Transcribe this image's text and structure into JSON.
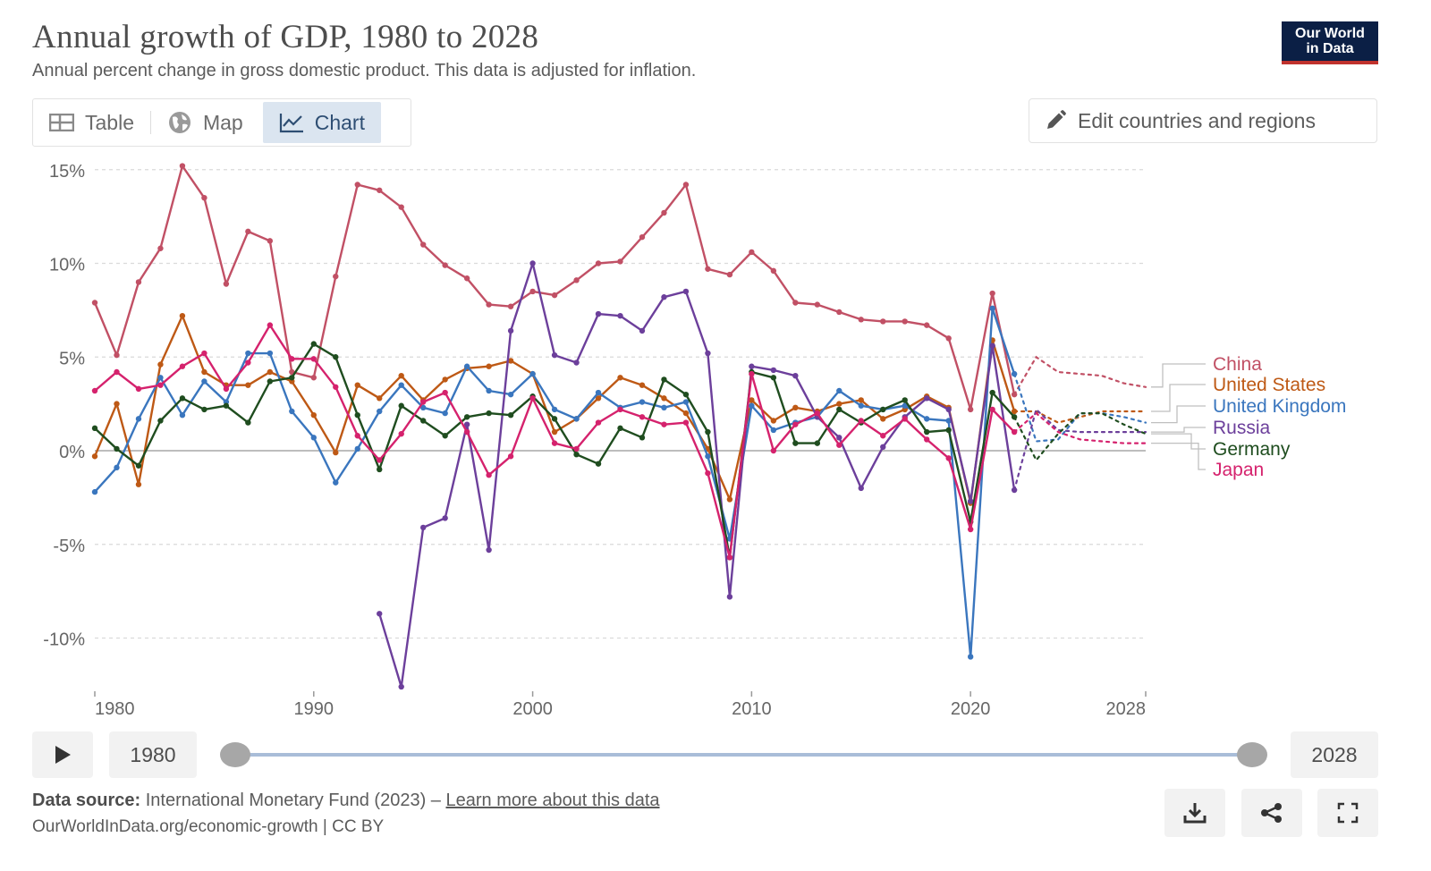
{
  "header": {
    "title": "Annual growth of GDP, 1980 to 2028",
    "subtitle": "Annual percent change in gross domestic product. This data is adjusted for inflation.",
    "logo_line1": "Our World",
    "logo_line2": "in Data"
  },
  "tabs": [
    {
      "label": "Table",
      "icon": "table-icon",
      "active": false
    },
    {
      "label": "Map",
      "icon": "globe-icon",
      "active": false
    },
    {
      "label": "Chart",
      "icon": "line-chart-icon",
      "active": true
    }
  ],
  "edit_button": {
    "label": "Edit countries and regions",
    "icon": "pencil-icon"
  },
  "timeline": {
    "start_label": "1980",
    "end_label": "2028",
    "play_icon": "play-icon"
  },
  "footer": {
    "source_prefix": "Data source:",
    "source_text": "International Monetary Fund (2023) –",
    "source_link": "Learn more about this data",
    "url": "OurWorldInData.org/economic-growth | CC BY",
    "buttons": [
      "download-icon",
      "share-icon",
      "fullscreen-icon"
    ]
  },
  "chart_data": {
    "type": "line",
    "xlim": [
      1980,
      2028
    ],
    "ylim": [
      -12.5,
      15
    ],
    "x_ticks": [
      1980,
      1990,
      2000,
      2010,
      2020,
      2028
    ],
    "y_ticks": [
      15,
      10,
      5,
      0,
      -5,
      -10
    ],
    "y_tick_labels": [
      "15%",
      "10%",
      "5%",
      "0%",
      "-5%",
      "-10%"
    ],
    "grid": true,
    "legend_position": "right",
    "series": [
      {
        "name": "China",
        "color": "#c15065",
        "x": [
          1980,
          1981,
          1982,
          1983,
          1984,
          1985,
          1986,
          1987,
          1988,
          1989,
          1990,
          1991,
          1992,
          1993,
          1994,
          1995,
          1996,
          1997,
          1998,
          1999,
          2000,
          2001,
          2002,
          2003,
          2004,
          2005,
          2006,
          2007,
          2008,
          2009,
          2010,
          2011,
          2012,
          2013,
          2014,
          2015,
          2016,
          2017,
          2018,
          2019,
          2020,
          2021,
          2022
        ],
        "y": [
          7.9,
          5.1,
          9.0,
          10.8,
          15.2,
          13.5,
          8.9,
          11.7,
          11.2,
          4.2,
          3.9,
          9.3,
          14.2,
          13.9,
          13.0,
          11.0,
          9.9,
          9.2,
          7.8,
          7.7,
          8.5,
          8.3,
          9.1,
          10.0,
          10.1,
          11.4,
          12.7,
          14.2,
          9.7,
          9.4,
          10.6,
          9.6,
          7.9,
          7.8,
          7.4,
          7.0,
          6.9,
          6.9,
          6.7,
          6.0,
          2.2,
          8.4,
          3.0
        ],
        "forecast_x": [
          2022,
          2023,
          2024,
          2025,
          2026,
          2027,
          2028
        ],
        "forecast_y": [
          3.0,
          5.0,
          4.2,
          4.1,
          4.0,
          3.6,
          3.4
        ]
      },
      {
        "name": "United States",
        "color": "#be5915",
        "x": [
          1980,
          1981,
          1982,
          1983,
          1984,
          1985,
          1986,
          1987,
          1988,
          1989,
          1990,
          1991,
          1992,
          1993,
          1994,
          1995,
          1996,
          1997,
          1998,
          1999,
          2000,
          2001,
          2002,
          2003,
          2004,
          2005,
          2006,
          2007,
          2008,
          2009,
          2010,
          2011,
          2012,
          2013,
          2014,
          2015,
          2016,
          2017,
          2018,
          2019,
          2020,
          2021,
          2022
        ],
        "y": [
          -0.3,
          2.5,
          -1.8,
          4.6,
          7.2,
          4.2,
          3.5,
          3.5,
          4.2,
          3.7,
          1.9,
          -0.1,
          3.5,
          2.8,
          4.0,
          2.7,
          3.8,
          4.4,
          4.5,
          4.8,
          4.1,
          1.0,
          1.7,
          2.8,
          3.9,
          3.5,
          2.8,
          2.0,
          0.1,
          -2.6,
          2.7,
          1.6,
          2.3,
          2.1,
          2.5,
          2.7,
          1.7,
          2.2,
          2.9,
          2.3,
          -2.8,
          5.9,
          2.1
        ],
        "forecast_x": [
          2022,
          2023,
          2024,
          2025,
          2026,
          2027,
          2028
        ],
        "forecast_y": [
          2.1,
          2.1,
          1.5,
          1.8,
          2.1,
          2.1,
          2.1
        ]
      },
      {
        "name": "United Kingdom",
        "color": "#3a76be",
        "x": [
          1980,
          1981,
          1982,
          1983,
          1984,
          1985,
          1986,
          1987,
          1988,
          1989,
          1990,
          1991,
          1992,
          1993,
          1994,
          1995,
          1996,
          1997,
          1998,
          1999,
          2000,
          2001,
          2002,
          2003,
          2004,
          2005,
          2006,
          2007,
          2008,
          2009,
          2010,
          2011,
          2012,
          2013,
          2014,
          2015,
          2016,
          2017,
          2018,
          2019,
          2020,
          2021,
          2022
        ],
        "y": [
          -2.2,
          -0.9,
          1.7,
          3.9,
          1.9,
          3.7,
          2.6,
          5.2,
          5.2,
          2.1,
          0.7,
          -1.7,
          0.1,
          2.1,
          3.5,
          2.3,
          2.0,
          4.5,
          3.2,
          3.0,
          4.1,
          2.2,
          1.7,
          3.1,
          2.3,
          2.6,
          2.3,
          2.6,
          -0.3,
          -4.7,
          2.4,
          1.1,
          1.5,
          1.8,
          3.2,
          2.4,
          2.2,
          2.4,
          1.7,
          1.6,
          -11.0,
          7.6,
          4.1
        ],
        "forecast_x": [
          2022,
          2023,
          2024,
          2025,
          2026,
          2027,
          2028
        ],
        "forecast_y": [
          4.1,
          0.5,
          0.6,
          2.0,
          2.0,
          1.8,
          1.5
        ]
      },
      {
        "name": "Russia",
        "color": "#6c3f9b",
        "x": [
          1993,
          1994,
          1995,
          1996,
          1997,
          1998,
          1999,
          2000,
          2001,
          2002,
          2003,
          2004,
          2005,
          2006,
          2007,
          2008,
          2009,
          2010,
          2011,
          2012,
          2013,
          2014,
          2015,
          2016,
          2017,
          2018,
          2019,
          2020,
          2021,
          2022
        ],
        "y": [
          -8.7,
          -12.6,
          -4.1,
          -3.6,
          1.4,
          -5.3,
          6.4,
          10.0,
          5.1,
          4.7,
          7.3,
          7.2,
          6.4,
          8.2,
          8.5,
          5.2,
          -7.8,
          4.5,
          4.3,
          4.0,
          1.8,
          0.7,
          -2.0,
          0.2,
          1.8,
          2.8,
          2.2,
          -2.7,
          5.6,
          -2.1
        ],
        "forecast_x": [
          2022,
          2023,
          2024,
          2025,
          2026,
          2027,
          2028
        ],
        "forecast_y": [
          -2.1,
          2.2,
          1.1,
          1.0,
          1.0,
          1.0,
          1.0
        ]
      },
      {
        "name": "Germany",
        "color": "#1f4d1f",
        "x": [
          1980,
          1981,
          1982,
          1983,
          1984,
          1985,
          1986,
          1987,
          1988,
          1989,
          1990,
          1991,
          1992,
          1993,
          1994,
          1995,
          1996,
          1997,
          1998,
          1999,
          2000,
          2001,
          2002,
          2003,
          2004,
          2005,
          2006,
          2007,
          2008,
          2009,
          2010,
          2011,
          2012,
          2013,
          2014,
          2015,
          2016,
          2017,
          2018,
          2019,
          2020,
          2021,
          2022
        ],
        "y": [
          1.2,
          0.1,
          -0.8,
          1.6,
          2.8,
          2.2,
          2.4,
          1.5,
          3.7,
          3.9,
          5.7,
          5.0,
          1.9,
          -1.0,
          2.4,
          1.6,
          0.8,
          1.8,
          2.0,
          1.9,
          2.9,
          1.7,
          -0.2,
          -0.7,
          1.2,
          0.7,
          3.8,
          3.0,
          1.0,
          -5.7,
          4.2,
          3.9,
          0.4,
          0.4,
          2.2,
          1.5,
          2.2,
          2.7,
          1.0,
          1.1,
          -3.8,
          3.1,
          1.8
        ],
        "forecast_x": [
          2022,
          2023,
          2024,
          2025,
          2026,
          2027,
          2028
        ],
        "forecast_y": [
          1.8,
          -0.5,
          0.9,
          2.0,
          2.0,
          1.4,
          0.9
        ]
      },
      {
        "name": "Japan",
        "color": "#d5226d",
        "x": [
          1980,
          1981,
          1982,
          1983,
          1984,
          1985,
          1986,
          1987,
          1988,
          1989,
          1990,
          1991,
          1992,
          1993,
          1994,
          1995,
          1996,
          1997,
          1998,
          1999,
          2000,
          2001,
          2002,
          2003,
          2004,
          2005,
          2006,
          2007,
          2008,
          2009,
          2010,
          2011,
          2012,
          2013,
          2014,
          2015,
          2016,
          2017,
          2018,
          2019,
          2020,
          2021,
          2022
        ],
        "y": [
          3.2,
          4.2,
          3.3,
          3.5,
          4.5,
          5.2,
          3.3,
          4.7,
          6.7,
          4.9,
          4.9,
          3.4,
          0.8,
          -0.5,
          0.9,
          2.6,
          3.1,
          1.0,
          -1.3,
          -0.3,
          2.8,
          0.4,
          0.1,
          1.5,
          2.2,
          1.8,
          1.4,
          1.5,
          -1.2,
          -5.7,
          4.1,
          0.0,
          1.4,
          2.0,
          0.3,
          1.6,
          0.8,
          1.7,
          0.6,
          -0.4,
          -4.2,
          2.2,
          1.0
        ],
        "forecast_x": [
          2022,
          2023,
          2024,
          2025,
          2026,
          2027,
          2028
        ],
        "forecast_y": [
          1.0,
          2.0,
          1.0,
          0.6,
          0.5,
          0.4,
          0.4
        ]
      }
    ]
  }
}
